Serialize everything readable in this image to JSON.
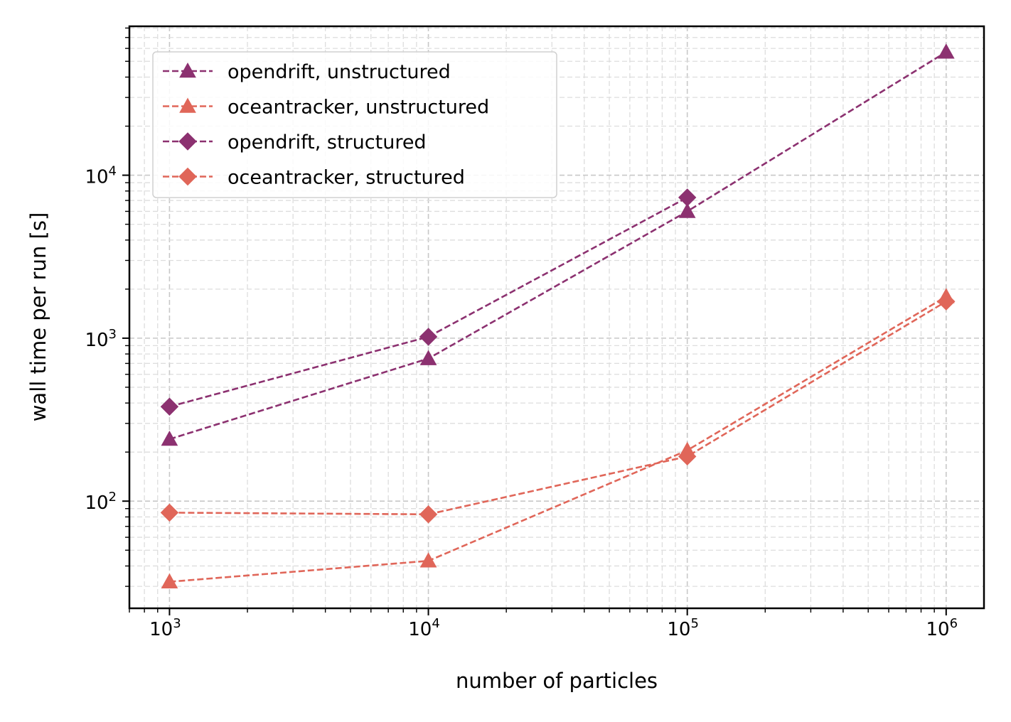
{
  "chart_data": {
    "type": "line",
    "xlabel": "number of particles",
    "ylabel": "wall time per run [s]",
    "xscale": "log",
    "yscale": "log",
    "xlim": [
      700,
      1400000
    ],
    "ylim": [
      22,
      82000
    ],
    "x_ticks": [
      {
        "base": "10",
        "exp": "3"
      },
      {
        "base": "10",
        "exp": "4"
      },
      {
        "base": "10",
        "exp": "5"
      },
      {
        "base": "10",
        "exp": "6"
      }
    ],
    "y_ticks": [
      {
        "base": "10",
        "exp": "2"
      },
      {
        "base": "10",
        "exp": "3"
      },
      {
        "base": "10",
        "exp": "4"
      }
    ],
    "grid": "major and minor, dashed",
    "legend_position": "upper-left",
    "x": [
      1000,
      10000,
      100000,
      1000000
    ],
    "series": [
      {
        "name": "opendrift, unstructured",
        "color": "#8c3170",
        "marker": "triangle",
        "values": [
          240,
          750,
          6000,
          57000
        ]
      },
      {
        "name": "oceantracker, unstructured",
        "color": "#e06659",
        "marker": "triangle",
        "values": [
          32,
          43,
          205,
          1800
        ]
      },
      {
        "name": "opendrift, structured",
        "color": "#8c3170",
        "marker": "diamond",
        "values": [
          380,
          1020,
          7300,
          null
        ]
      },
      {
        "name": "oceantracker, structured",
        "color": "#e06659",
        "marker": "diamond",
        "values": [
          85,
          83,
          188,
          1680
        ]
      }
    ]
  }
}
